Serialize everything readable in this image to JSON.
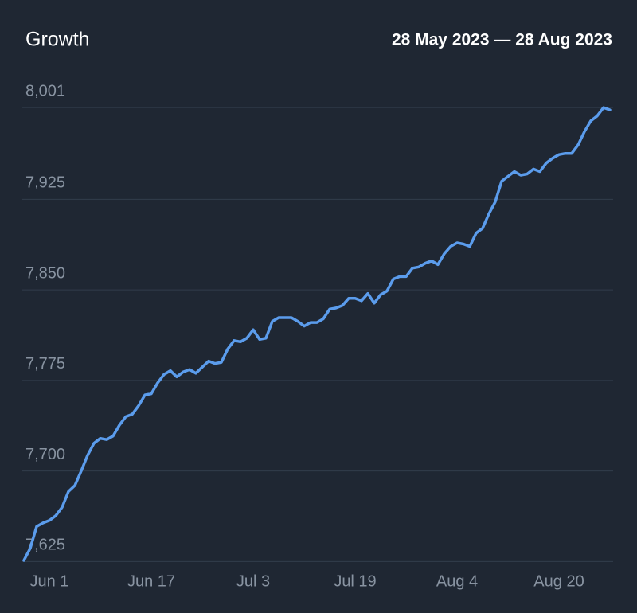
{
  "chart_data": {
    "type": "line",
    "title": "Growth",
    "subtitle": "28 May 2023 — 28 Aug 2023",
    "categories": [
      null,
      null,
      null,
      null,
      "Jun 1",
      null,
      null,
      null,
      null,
      null,
      null,
      null,
      null,
      null,
      null,
      null,
      null,
      null,
      null,
      null,
      "Jun 17",
      null,
      null,
      null,
      null,
      null,
      null,
      null,
      null,
      null,
      null,
      null,
      null,
      null,
      null,
      null,
      "Jul 3",
      null,
      null,
      null,
      null,
      null,
      null,
      null,
      null,
      null,
      null,
      null,
      null,
      null,
      null,
      null,
      "Jul 19",
      null,
      null,
      null,
      null,
      null,
      null,
      null,
      null,
      null,
      null,
      null,
      null,
      null,
      null,
      null,
      "Aug 4",
      null,
      null,
      null,
      null,
      null,
      null,
      null,
      null,
      null,
      null,
      null,
      null,
      null,
      null,
      null,
      "Aug 20",
      null,
      null,
      null,
      null,
      null,
      null,
      null,
      null
    ],
    "series": [
      {
        "name": "Growth",
        "color": "#5b9cec",
        "values": [
          7626,
          7636,
          7654,
          7657,
          7659,
          7663,
          7670,
          7683,
          7688,
          7700,
          7713,
          7723,
          7727,
          7726,
          7729,
          7738,
          7745,
          7747,
          7754,
          7763,
          7764,
          7773,
          7780,
          7783,
          7778,
          7782,
          7784,
          7781,
          7786,
          7791,
          7789,
          7790,
          7801,
          7808,
          7807,
          7810,
          7817,
          7809,
          7810,
          7824,
          7827,
          7827,
          7827,
          7824,
          7820,
          7823,
          7823,
          7826,
          7834,
          7835,
          7837,
          7843,
          7843,
          7841,
          7847,
          7839,
          7846,
          7849,
          7859,
          7861,
          7861,
          7868,
          7869,
          7872,
          7874,
          7871,
          7880,
          7886,
          7889,
          7888,
          7886,
          7897,
          7901,
          7913,
          7923,
          7940,
          7944,
          7948,
          7945,
          7946,
          7950,
          7948,
          7955,
          7959,
          7962,
          7963,
          7963,
          7970,
          7981,
          7990,
          7994,
          8001,
          7999
        ]
      }
    ],
    "ylim": [
      7620,
      8005
    ],
    "yticks": [
      {
        "value": 7625,
        "label": "7,625"
      },
      {
        "value": 7700,
        "label": "7,700"
      },
      {
        "value": 7775,
        "label": "7,775"
      },
      {
        "value": 7850,
        "label": "7,850"
      },
      {
        "value": 7925,
        "label": "7,925"
      },
      {
        "value": 8001,
        "label": "8,001"
      }
    ],
    "grid": true
  }
}
